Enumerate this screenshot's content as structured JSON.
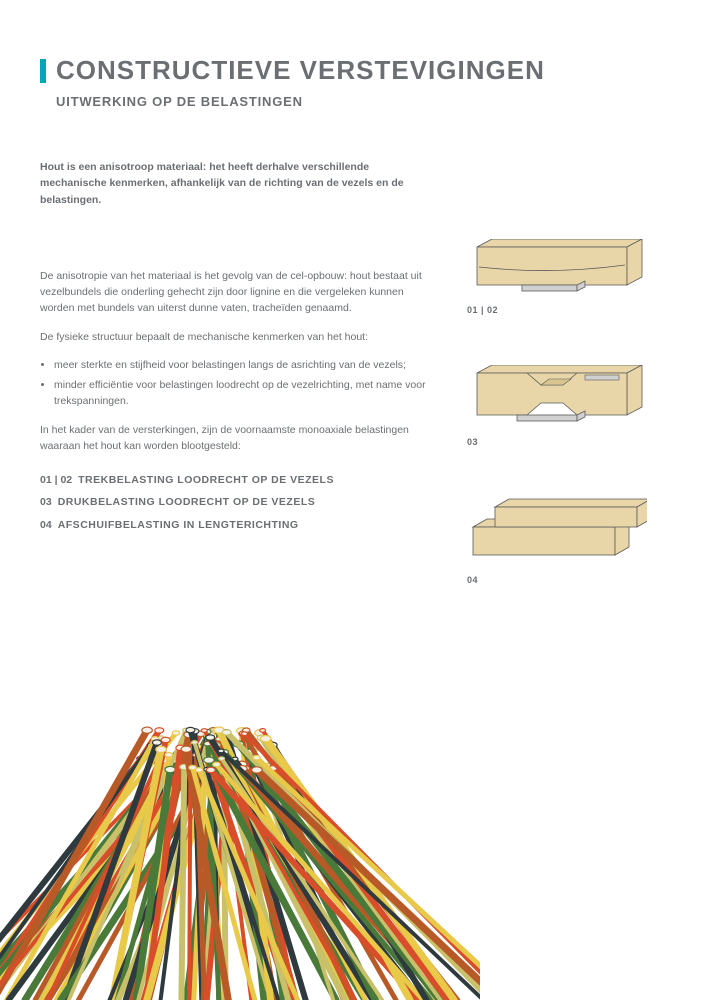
{
  "header": {
    "title": "CONSTRUCTIEVE VERSTEVIGINGEN",
    "subtitle": "UITWERKING OP DE BELASTINGEN",
    "accent_color": "#00a7b5"
  },
  "text": {
    "intro": "Hout is een anisotroop materiaal: het heeft derhalve verschillende mechanische kenmerken, afhankelijk van de richting van de vezels en de belastingen.",
    "p1": "De anisotropie van het materiaal is het gevolg van de cel-opbouw: hout bestaat uit vezelbundels die onderling gehecht zijn door lignine en die vergeleken kunnen worden met bundels van uiterst dunne vaten, tracheïden genaamd.",
    "p2": "De fysieke structuur bepaalt de mechanische kenmerken van het hout:",
    "bullet1": "meer sterkte en stijfheid voor belastingen langs de asrichting van de vezels;",
    "bullet2": "minder efficiëntie voor belastingen loodrecht op de vezelrichting, met name voor trekspanningen.",
    "p3": "In het kader van de versterkingen, zijn de voornaamste monoaxiale belastingen waaraan het hout kan worden blootgesteld:"
  },
  "load_types": [
    {
      "num": "01 | 02",
      "label": "TREKBELASTING LOODRECHT OP DE VEZELS"
    },
    {
      "num": "03",
      "label": "DRUKBELASTING LOODRECHT OP DE VEZELS"
    },
    {
      "num": "04",
      "label": "AFSCHUIFBELASTING IN LENGTERICHTING"
    }
  ],
  "diagrams": {
    "d1_caption": "01 | 02",
    "d2_caption": "03",
    "d3_caption": "04",
    "wood_fill": "#e8d6a8",
    "wood_stroke": "#5a5a5a",
    "metal_fill": "#d0d0d0"
  },
  "rods": {
    "colors": [
      "#d94e2a",
      "#e8c94a",
      "#2f3a3f",
      "#4a7a3a",
      "#c9c06a",
      "#b85a28"
    ]
  }
}
